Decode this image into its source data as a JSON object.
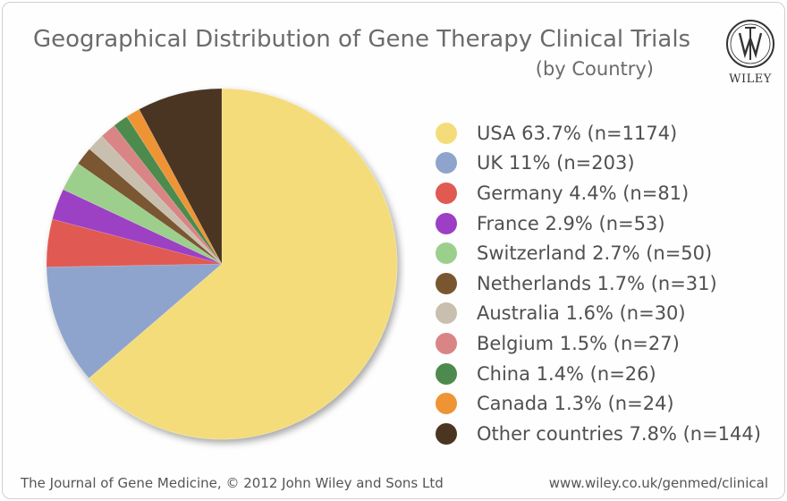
{
  "header": {
    "title": "Geographical Distribution of Gene Therapy Clinical Trials",
    "subtitle": "(by Country)"
  },
  "logo": {
    "word": "WILEY"
  },
  "footer": {
    "left": "The Journal of Gene Medicine, © 2012 John Wiley and Sons Ltd",
    "right": "www.wiley.co.uk/genmed/clinical"
  },
  "chart_data": {
    "type": "pie",
    "title": "Geographical Distribution of Gene Therapy Clinical Trials",
    "subtitle": "(by Country)",
    "start_angle": "12 o'clock",
    "direction": "clockwise",
    "legend_position": "right",
    "slices": [
      {
        "label": "USA 63.7% (n=1174)",
        "value": 1174,
        "percent": 63.7,
        "color": "#f5dc7a"
      },
      {
        "label": "UK 11% (n=203)",
        "value": 203,
        "percent": 11.0,
        "color": "#8fa4cc"
      },
      {
        "label": "Germany 4.4% (n=81)",
        "value": 81,
        "percent": 4.4,
        "color": "#e05a52"
      },
      {
        "label": "France 2.9% (n=53)",
        "value": 53,
        "percent": 2.9,
        "color": "#9c3fc4"
      },
      {
        "label": "Switzerland 2.7% (n=50)",
        "value": 50,
        "percent": 2.7,
        "color": "#9ccf8c"
      },
      {
        "label": "Netherlands 1.7% (n=31)",
        "value": 31,
        "percent": 1.7,
        "color": "#7a5630"
      },
      {
        "label": "Australia 1.6% (n=30)",
        "value": 30,
        "percent": 1.6,
        "color": "#c9bfae"
      },
      {
        "label": "Belgium 1.5% (n=27)",
        "value": 27,
        "percent": 1.5,
        "color": "#d98585"
      },
      {
        "label": "China 1.4% (n=26)",
        "value": 26,
        "percent": 1.4,
        "color": "#4e8a4e"
      },
      {
        "label": "Canada 1.3% (n=24)",
        "value": 24,
        "percent": 1.3,
        "color": "#ee9435"
      },
      {
        "label": "Other countries 7.8% (n=144)",
        "value": 144,
        "percent": 7.8,
        "color": "#4a3620"
      }
    ]
  }
}
